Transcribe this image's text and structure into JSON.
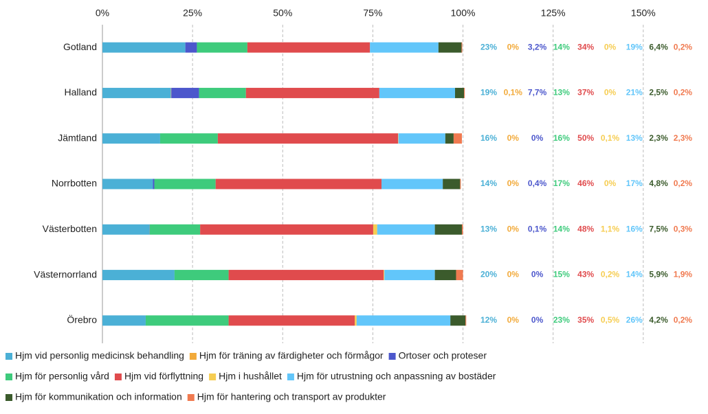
{
  "chart_data": {
    "type": "stacked-bar-horizontal",
    "categories": [
      "Gotland",
      "Halland",
      "Jämtland",
      "Norrbotten",
      "Västerbotten",
      "Västernorrland",
      "Örebro"
    ],
    "series": [
      {
        "name": "Hjm vid personlig medicinsk behandling",
        "color": "#4bb0d6",
        "values": [
          23,
          19,
          16,
          14,
          13,
          20,
          12
        ],
        "value_labels": [
          "23%",
          "19%",
          "16%",
          "14%",
          "13%",
          "20%",
          "12%"
        ]
      },
      {
        "name": "Hjm för träning av färdigheter och förmågor",
        "color": "#f2aa3a",
        "values": [
          0,
          0.1,
          0,
          0,
          0,
          0,
          0
        ],
        "value_labels": [
          "0%",
          "0,1%",
          "0%",
          "0%",
          "0%",
          "0%",
          "0%"
        ]
      },
      {
        "name": "Ortoser och proteser",
        "color": "#4c57cc",
        "values": [
          3.2,
          7.7,
          0,
          0.4,
          0.1,
          0,
          0
        ],
        "value_labels": [
          "3,2%",
          "7,7%",
          "0%",
          "0,4%",
          "0,1%",
          "0%",
          "0%"
        ]
      },
      {
        "name": "Hjm för personlig vård",
        "color": "#3ecb7c",
        "values": [
          14,
          13,
          16,
          17,
          14,
          15,
          23
        ],
        "value_labels": [
          "14%",
          "13%",
          "16%",
          "17%",
          "14%",
          "15%",
          "23%"
        ]
      },
      {
        "name": "Hjm vid förflyttning",
        "color": "#e04b4d",
        "values": [
          34,
          37,
          50,
          46,
          48,
          43,
          35
        ],
        "value_labels": [
          "34%",
          "37%",
          "50%",
          "46%",
          "48%",
          "43%",
          "35%"
        ]
      },
      {
        "name": "Hjm i hushållet",
        "color": "#f6cd52",
        "values": [
          0,
          0,
          0.1,
          0,
          1.1,
          0.2,
          0.5
        ],
        "value_labels": [
          "0%",
          "0%",
          "0,1%",
          "0%",
          "1,1%",
          "0,2%",
          "0,5%"
        ]
      },
      {
        "name": "Hjm för utrustning och anpassning av bostäder",
        "color": "#62c6fa",
        "values": [
          19,
          21,
          13,
          17,
          16,
          14,
          26
        ],
        "value_labels": [
          "19%",
          "21%",
          "13%",
          "17%",
          "16%",
          "14%",
          "26%"
        ]
      },
      {
        "name": "Hjm för kommunikation och information",
        "color": "#3b5b2c",
        "values": [
          6.4,
          2.5,
          2.3,
          4.8,
          7.5,
          5.9,
          4.2
        ],
        "value_labels": [
          "6,4%",
          "2,5%",
          "2,3%",
          "4,8%",
          "7,5%",
          "5,9%",
          "4,2%"
        ]
      },
      {
        "name": "Hjm för hantering och transport av produkter",
        "color": "#f07a50",
        "values": [
          0.2,
          0.2,
          2.3,
          0.2,
          0.3,
          1.9,
          0.2
        ],
        "value_labels": [
          "0,2%",
          "0,2%",
          "2,3%",
          "0,2%",
          "0,3%",
          "1,9%",
          "0,2%"
        ]
      }
    ],
    "xlim": [
      0,
      167
    ],
    "xticks": [
      {
        "value": 0,
        "label": "0%"
      },
      {
        "value": 25,
        "label": "25%"
      },
      {
        "value": 50,
        "label": "50%"
      },
      {
        "value": 75,
        "label": "75%"
      },
      {
        "value": 100,
        "label": "100%"
      },
      {
        "value": 125,
        "label": "125%"
      },
      {
        "value": 150,
        "label": "150%"
      }
    ],
    "grid": true
  }
}
